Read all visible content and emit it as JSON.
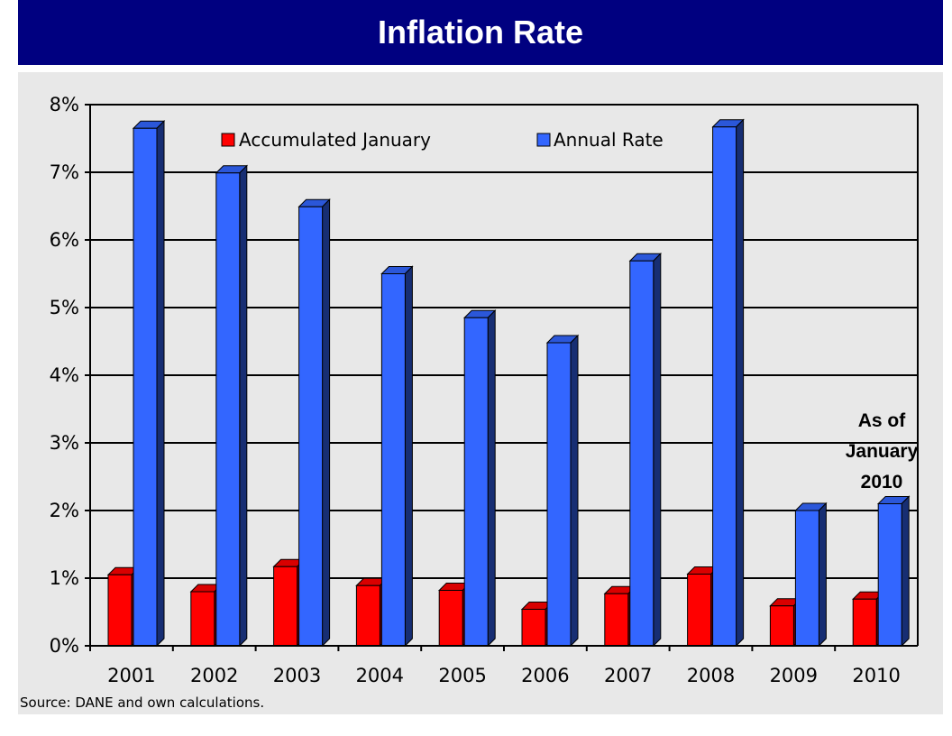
{
  "chart_data": {
    "type": "bar",
    "title": "Inflation Rate",
    "categories": [
      "2001",
      "2002",
      "2003",
      "2004",
      "2005",
      "2006",
      "2007",
      "2008",
      "2009",
      "2010"
    ],
    "series": [
      {
        "name": "Accumulated January",
        "color": "#ff0000",
        "values": [
          1.05,
          0.8,
          1.17,
          0.89,
          0.82,
          0.54,
          0.77,
          1.06,
          0.59,
          0.69
        ]
      },
      {
        "name": "Annual Rate",
        "color": "#3366ff",
        "values": [
          7.65,
          6.99,
          6.49,
          5.5,
          4.85,
          4.48,
          5.69,
          7.67,
          2.0,
          2.1
        ]
      }
    ],
    "y_ticks": [
      "0%",
      "1%",
      "2%",
      "3%",
      "4%",
      "5%",
      "6%",
      "7%",
      "8%"
    ],
    "ylim": [
      0,
      8
    ],
    "xlabel": "",
    "ylabel": "",
    "grid": true,
    "legend_position": "top",
    "annotation": [
      "As of",
      "January",
      "2010"
    ],
    "source": "Source: DANE and own calculations."
  }
}
